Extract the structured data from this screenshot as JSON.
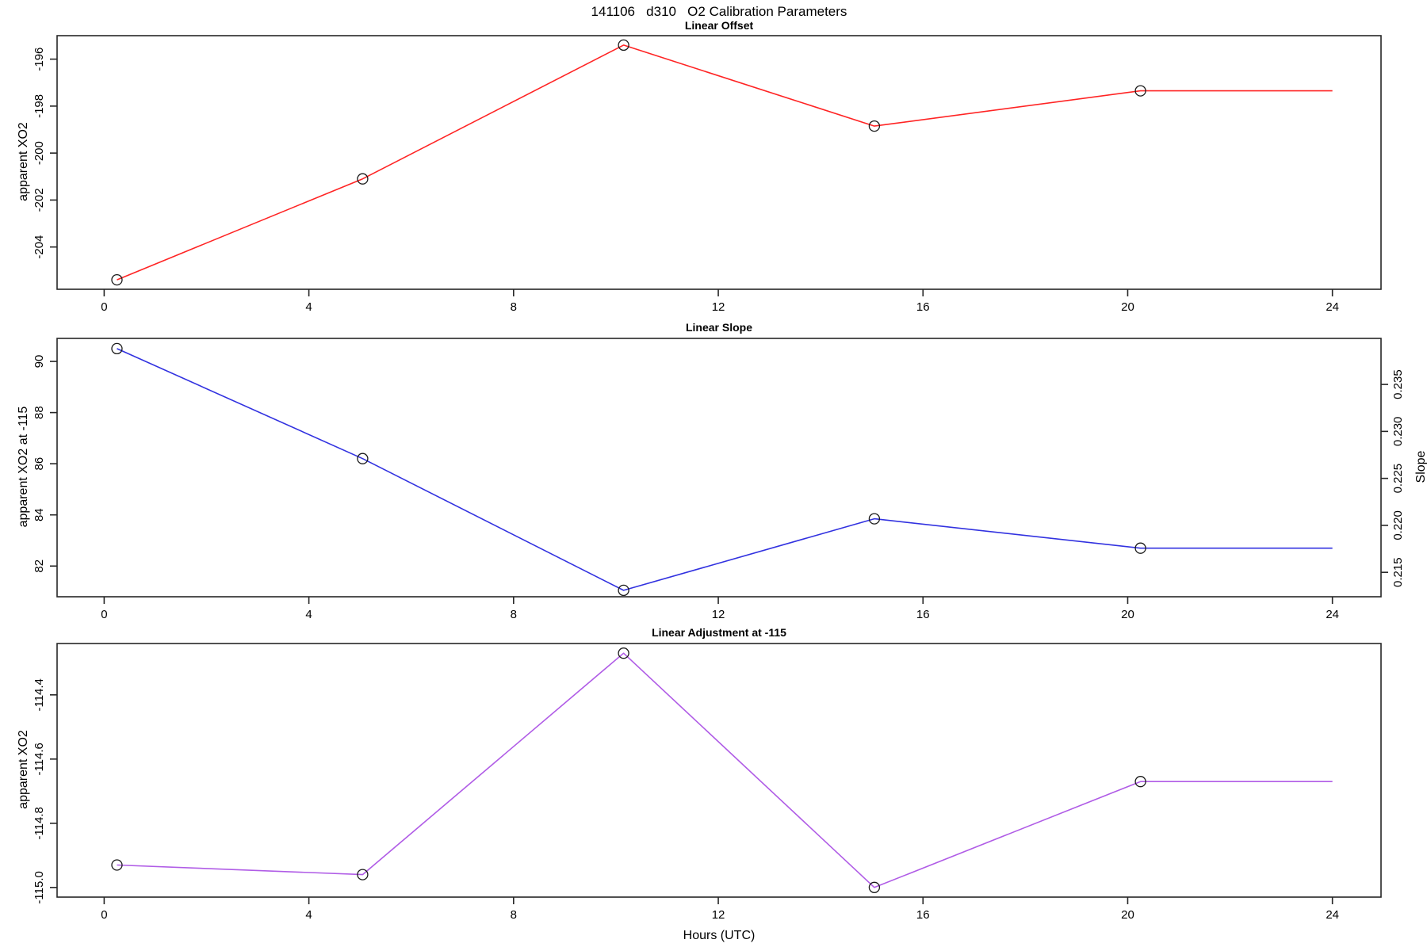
{
  "page": {
    "title": "141106   d310   O2 Calibration Parameters",
    "xlabel": "Hours (UTC)"
  },
  "chart_data": [
    {
      "type": "line",
      "title": "Linear Offset",
      "ylabel": "apparent XO2",
      "line_color": "#ff2424",
      "marker": "open-circle",
      "marker_color": "#1a1a1a",
      "x": [
        0.25,
        5.05,
        10.15,
        15.05,
        20.25,
        24
      ],
      "y": [
        -205.4,
        -201.1,
        -195.4,
        -198.85,
        -197.35,
        -197.35
      ],
      "n_markers": 5,
      "xlim": [
        -0.92,
        24.95
      ],
      "xticks": [
        0,
        4,
        8,
        12,
        16,
        20,
        24
      ],
      "ylim": [
        -205.8,
        -195.0
      ],
      "ytick_values": [
        -204,
        -202,
        -200,
        -198,
        -196
      ],
      "ytick_labels": [
        "-204",
        "-202",
        "-200",
        "-198",
        "-196"
      ],
      "grid": "off",
      "legend": "none"
    },
    {
      "type": "line",
      "title": "Linear Slope",
      "ylabel": "apparent XO2 at -115",
      "line_color": "#3232e0",
      "marker": "open-circle",
      "marker_color": "#1a1a1a",
      "x": [
        0.25,
        5.05,
        10.15,
        15.05,
        20.25,
        24
      ],
      "y": [
        90.5,
        86.2,
        81.05,
        83.85,
        82.7,
        82.7
      ],
      "n_markers": 5,
      "xlim": [
        -0.92,
        24.95
      ],
      "xticks": [
        0,
        4,
        8,
        12,
        16,
        20,
        24
      ],
      "ylim": [
        80.8,
        90.9
      ],
      "ytick_values": [
        82,
        84,
        86,
        88,
        90
      ],
      "ytick_labels": [
        "82",
        "84",
        "86",
        "88",
        "90"
      ],
      "right_axis": {
        "label": "Slope",
        "tick_values": [
          0.215,
          0.22,
          0.225,
          0.23,
          0.235
        ],
        "tick_labels": [
          "0.215",
          "0.220",
          "0.225",
          "0.230",
          "0.235"
        ],
        "lim": [
          0.2124,
          0.2399
        ]
      },
      "grid": "off",
      "legend": "none"
    },
    {
      "type": "line",
      "title": "Linear Adjustment at -115",
      "ylabel": "apparent XO2",
      "line_color": "#b05ce6",
      "marker": "open-circle",
      "marker_color": "#1a1a1a",
      "x": [
        0.25,
        5.05,
        10.15,
        15.05,
        20.25,
        24
      ],
      "y": [
        -114.93,
        -114.96,
        -114.27,
        -115.0,
        -114.67,
        -114.67
      ],
      "n_markers": 5,
      "xlim": [
        -0.92,
        24.95
      ],
      "xticks": [
        0,
        4,
        8,
        12,
        16,
        20,
        24
      ],
      "ylim": [
        -115.03,
        -114.24
      ],
      "ytick_values": [
        -115.0,
        -114.8,
        -114.6,
        -114.4
      ],
      "ytick_labels": [
        "-115.0",
        "-114.8",
        "-114.6",
        "-114.4"
      ],
      "grid": "off",
      "legend": "none"
    }
  ]
}
